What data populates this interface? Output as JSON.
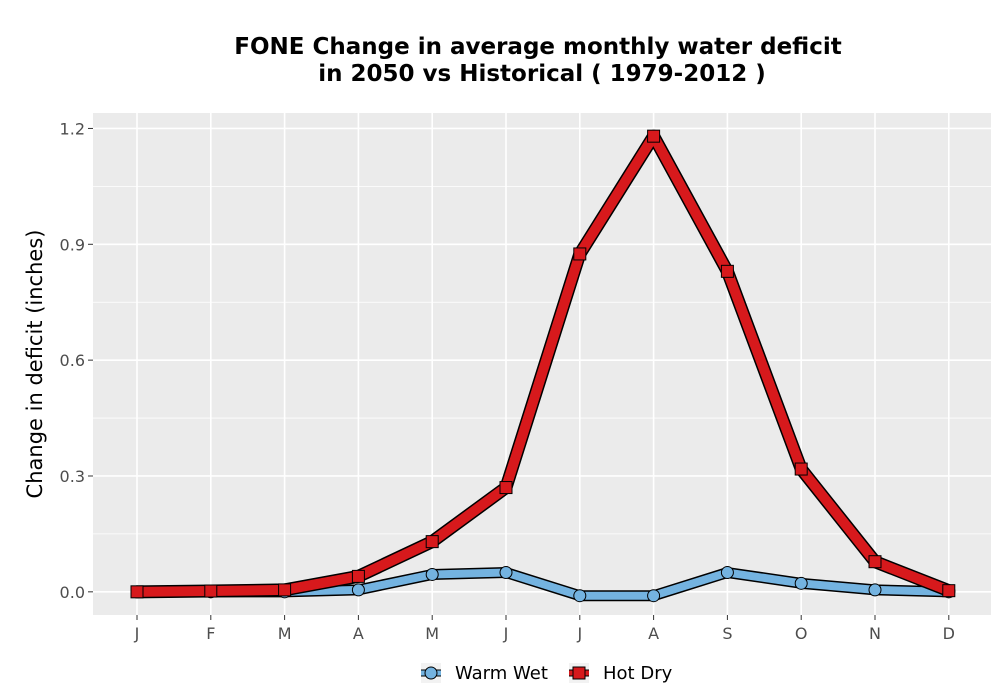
{
  "chart_data": {
    "type": "line",
    "title_line1": "FONE  Change in average monthly water deficit",
    "title_line2": "in 2050 vs Historical ( 1979-2012 )",
    "xlabel": "",
    "ylabel": "Change in deficit (inches)",
    "categories": [
      "J",
      "F",
      "M",
      "A",
      "M",
      "J",
      "J",
      "A",
      "S",
      "O",
      "N",
      "D"
    ],
    "ylim": [
      -0.06,
      1.24
    ],
    "yticks": [
      0.0,
      0.3,
      0.6,
      0.9,
      1.2
    ],
    "ytick_labels": [
      "0.0",
      "0.3",
      "0.6",
      "0.9",
      "1.2"
    ],
    "grid": true,
    "legend_position": "bottom",
    "series": [
      {
        "name": "Warm Wet",
        "marker": "circle",
        "color": "#74b3e0",
        "values": [
          0.0,
          0.0,
          0.0,
          0.005,
          0.045,
          0.05,
          -0.01,
          -0.01,
          0.05,
          0.022,
          0.005,
          0.0
        ]
      },
      {
        "name": "Hot Dry",
        "marker": "square",
        "color": "#d7191c",
        "values": [
          0.0,
          0.002,
          0.005,
          0.04,
          0.13,
          0.27,
          0.875,
          1.18,
          0.83,
          0.318,
          0.078,
          0.003
        ]
      }
    ]
  }
}
